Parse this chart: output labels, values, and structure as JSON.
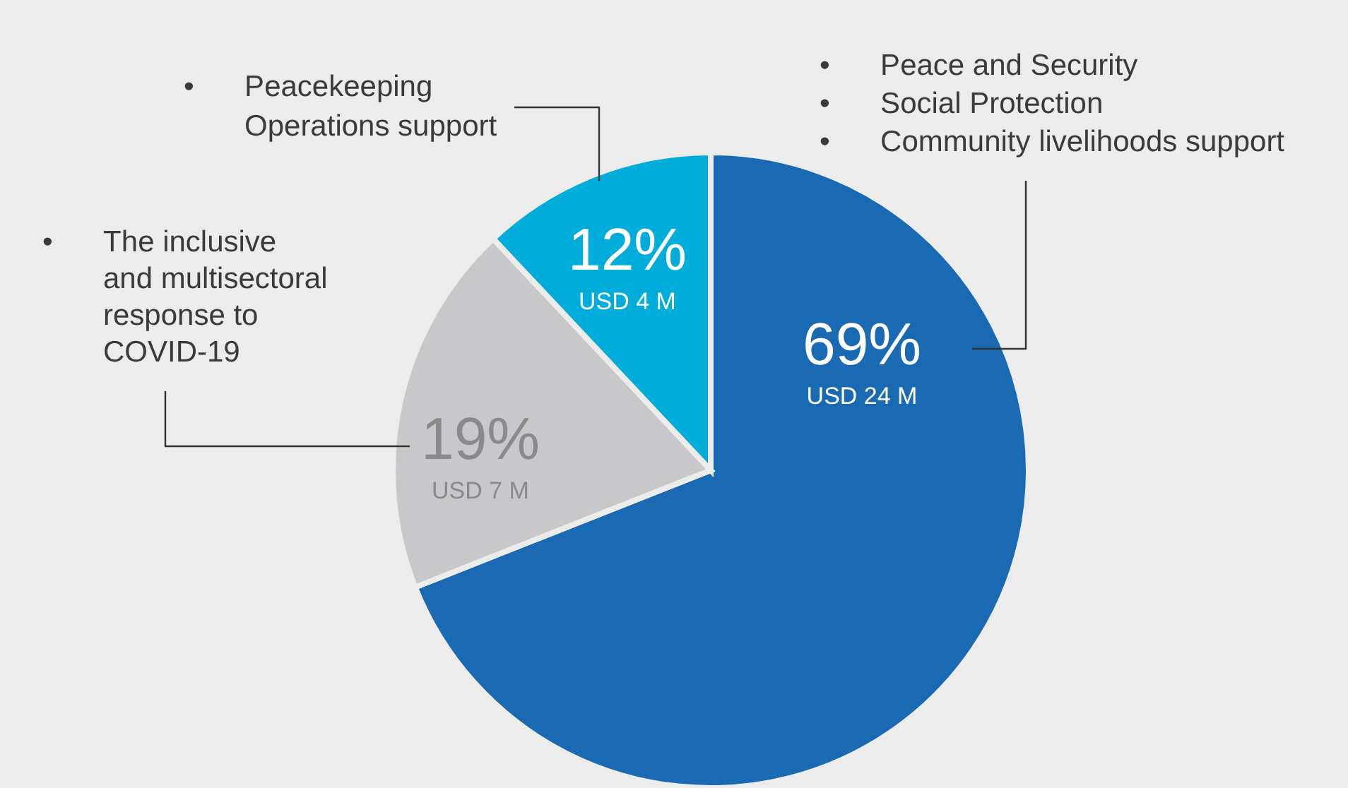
{
  "chart_data": {
    "type": "pie",
    "categories": [
      "• Peace and Security\n• Social Protection\n• Community livelihoods support",
      "• The inclusive\nand multisectoral\nresponse to\nCOVID-19",
      "• Peacekeeping\nOperations support"
    ],
    "values": [
      69,
      19,
      12
    ],
    "colors": [
      "#1a69b3",
      "#c8c8ca",
      "#00acd9"
    ],
    "value_labels": [
      "69%\nUSD 24 M",
      "19%\nUSD 7 M",
      "12%\nUSD 4 M"
    ]
  }
}
